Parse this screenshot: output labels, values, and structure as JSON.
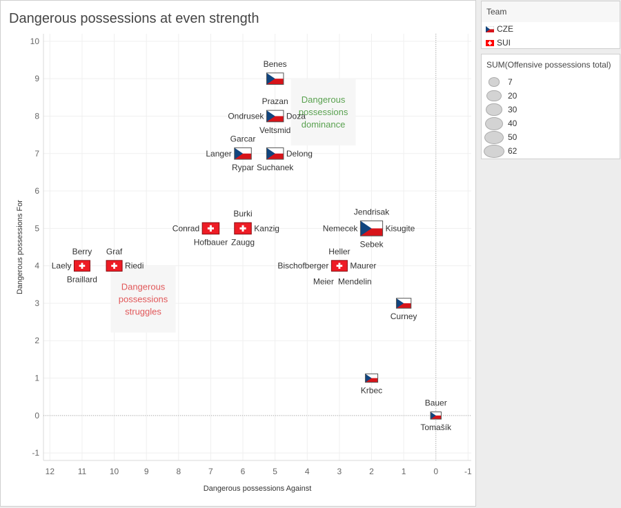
{
  "chart_data": {
    "type": "scatter",
    "title": "Dangerous possessions at even strength",
    "xlabel": "Dangerous possessions Against",
    "ylabel": "Dangerous possessions For",
    "xlim": [
      12.2,
      -1.1
    ],
    "x_reversed": true,
    "ylim": [
      -1.2,
      10.2
    ],
    "xticks": [
      12,
      11,
      10,
      9,
      8,
      7,
      6,
      5,
      4,
      3,
      2,
      1,
      0,
      -1
    ],
    "yticks": [
      10,
      9,
      8,
      7,
      6,
      5,
      4,
      3,
      2,
      1,
      0,
      -1
    ],
    "grid": true,
    "zero_reference_lines": true,
    "points": [
      {
        "team": "CZE",
        "x": 5,
        "y": 9,
        "size": 30,
        "labels": {
          "top": "Benes"
        }
      },
      {
        "team": "CZE",
        "x": 5,
        "y": 8,
        "size": 30,
        "labels": {
          "top": "Prazan",
          "left": "Ondrusek",
          "right": "Doza",
          "bottom": "Veltsmid"
        }
      },
      {
        "team": "CZE",
        "x": 6,
        "y": 7,
        "size": 30,
        "labels": {
          "top": "Garcar",
          "left": "Langer",
          "bottom": "Rypar"
        }
      },
      {
        "team": "CZE",
        "x": 5,
        "y": 7,
        "size": 30,
        "labels": {
          "right": "Delong",
          "bottom": "Suchanek"
        }
      },
      {
        "team": "SUI",
        "x": 7,
        "y": 5,
        "size": 30,
        "labels": {
          "left": "Conrad",
          "bottom": "Hofbauer"
        }
      },
      {
        "team": "SUI",
        "x": 6,
        "y": 5,
        "size": 30,
        "labels": {
          "top": "Burki",
          "right": "Kanzig",
          "bottom": "Zaugg"
        }
      },
      {
        "team": "CZE",
        "x": 2,
        "y": 5,
        "size": 62,
        "labels": {
          "top": "Jendrisak",
          "left": "Nemecek",
          "right": "Kisugite",
          "bottom": "Sebek"
        }
      },
      {
        "team": "SUI",
        "x": 11,
        "y": 4,
        "size": 25,
        "labels": {
          "top": "Berry",
          "left": "Laely",
          "bottom": "Braillard"
        }
      },
      {
        "team": "SUI",
        "x": 10,
        "y": 4,
        "size": 25,
        "labels": {
          "top": "Graf",
          "right": "Riedi"
        }
      },
      {
        "team": "SUI",
        "x": 3,
        "y": 4,
        "size": 25,
        "labels": {
          "top": "Heller",
          "left": "Bischofberger",
          "right": "Maurer",
          "bottom_left": "Meier",
          "bottom_right": "Mendelin"
        }
      },
      {
        "team": "CZE",
        "x": 1,
        "y": 3,
        "size": 20,
        "labels": {
          "bottom": "Curney"
        }
      },
      {
        "team": "CZE",
        "x": 2,
        "y": 1,
        "size": 12,
        "labels": {
          "bottom": "Krbec"
        }
      },
      {
        "team": "CZE",
        "x": 0,
        "y": 0,
        "size": 7,
        "labels": {
          "top": "Bauer",
          "bottom": "Tomašík"
        }
      }
    ],
    "annotations": [
      {
        "text": [
          "Dangerous",
          "possessions",
          "dominance"
        ],
        "x": 3.5,
        "y": 8.1,
        "color": "#59a14f"
      },
      {
        "text": [
          "Dangerous",
          "possessions",
          "struggles"
        ],
        "x": 9.1,
        "y": 3.1,
        "color": "#e15759"
      }
    ],
    "legend_team": {
      "title": "Team",
      "items": [
        {
          "name": "CZE"
        },
        {
          "name": "SUI"
        }
      ]
    },
    "legend_size": {
      "title": "SUM(Offensive possessions total)",
      "values": [
        7,
        20,
        30,
        40,
        50,
        62
      ]
    }
  }
}
